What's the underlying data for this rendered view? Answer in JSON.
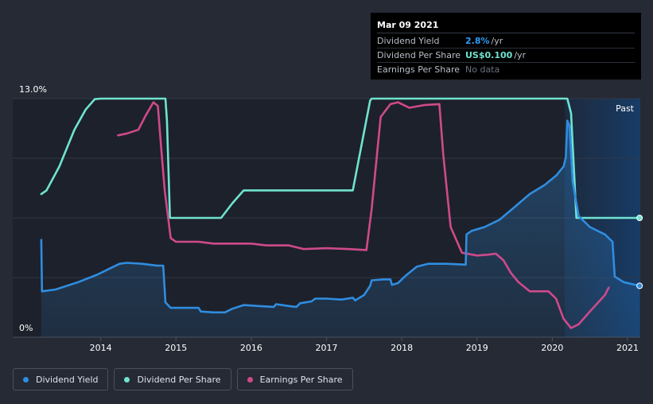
{
  "chart_data": {
    "type": "line",
    "x_tick_labels": [
      "2014",
      "2015",
      "2016",
      "2017",
      "2018",
      "2019",
      "2020",
      "2021"
    ],
    "y_tick_labels": [
      "13.0%",
      "0%"
    ],
    "ylim": [
      0,
      13.0
    ],
    "past_label": "Past",
    "grid": true,
    "series": [
      {
        "name": "Dividend Yield",
        "color": "#2f8de0",
        "area": true,
        "points": [
          [
            2013.21,
            5.3
          ],
          [
            2013.22,
            2.5
          ],
          [
            2013.4,
            2.6
          ],
          [
            2013.7,
            3.0
          ],
          [
            2013.95,
            3.4
          ],
          [
            2014.1,
            3.7
          ],
          [
            2014.25,
            4.0
          ],
          [
            2014.35,
            4.05
          ],
          [
            2014.55,
            4.0
          ],
          [
            2014.75,
            3.9
          ],
          [
            2014.83,
            3.9
          ],
          [
            2014.86,
            1.9
          ],
          [
            2014.93,
            1.6
          ],
          [
            2015.3,
            1.6
          ],
          [
            2015.33,
            1.4
          ],
          [
            2015.5,
            1.35
          ],
          [
            2015.65,
            1.35
          ],
          [
            2015.75,
            1.55
          ],
          [
            2015.9,
            1.75
          ],
          [
            2016.1,
            1.7
          ],
          [
            2016.3,
            1.65
          ],
          [
            2016.33,
            1.8
          ],
          [
            2016.5,
            1.7
          ],
          [
            2016.6,
            1.65
          ],
          [
            2016.65,
            1.85
          ],
          [
            2016.8,
            1.95
          ],
          [
            2016.85,
            2.1
          ],
          [
            2017.0,
            2.1
          ],
          [
            2017.2,
            2.05
          ],
          [
            2017.35,
            2.15
          ],
          [
            2017.38,
            2.0
          ],
          [
            2017.5,
            2.3
          ],
          [
            2017.58,
            2.8
          ],
          [
            2017.6,
            3.1
          ],
          [
            2017.75,
            3.15
          ],
          [
            2017.85,
            3.15
          ],
          [
            2017.87,
            2.85
          ],
          [
            2017.95,
            2.95
          ],
          [
            2018.05,
            3.35
          ],
          [
            2018.2,
            3.85
          ],
          [
            2018.35,
            4.0
          ],
          [
            2018.6,
            4.0
          ],
          [
            2018.85,
            3.95
          ],
          [
            2018.86,
            5.6
          ],
          [
            2018.93,
            5.8
          ],
          [
            2019.1,
            6.0
          ],
          [
            2019.3,
            6.4
          ],
          [
            2019.5,
            7.1
          ],
          [
            2019.7,
            7.8
          ],
          [
            2019.9,
            8.3
          ],
          [
            2020.05,
            8.8
          ],
          [
            2020.15,
            9.3
          ],
          [
            2020.18,
            9.8
          ],
          [
            2020.2,
            11.8
          ],
          [
            2020.23,
            11.5
          ],
          [
            2020.27,
            8.5
          ],
          [
            2020.35,
            6.6
          ],
          [
            2020.5,
            6.0
          ],
          [
            2020.7,
            5.6
          ],
          [
            2020.8,
            5.2
          ],
          [
            2020.83,
            3.3
          ],
          [
            2020.95,
            3.0
          ],
          [
            2021.16,
            2.8
          ]
        ]
      },
      {
        "name": "Dividend Per Share",
        "color": "#6fe3d0",
        "area": false,
        "points": [
          [
            2013.21,
            7.8
          ],
          [
            2013.28,
            8.0
          ],
          [
            2013.45,
            9.3
          ],
          [
            2013.65,
            11.3
          ],
          [
            2013.8,
            12.4
          ],
          [
            2013.92,
            12.97
          ],
          [
            2014.0,
            13.0
          ],
          [
            2014.86,
            13.0
          ],
          [
            2014.88,
            11.8
          ],
          [
            2014.92,
            6.5
          ],
          [
            2015.6,
            6.5
          ],
          [
            2015.75,
            7.3
          ],
          [
            2015.9,
            8.0
          ],
          [
            2016.0,
            8.0
          ],
          [
            2017.35,
            8.0
          ],
          [
            2017.5,
            11.2
          ],
          [
            2017.58,
            12.9
          ],
          [
            2017.6,
            13.0
          ],
          [
            2020.2,
            13.0
          ],
          [
            2020.25,
            12.2
          ],
          [
            2020.32,
            6.5
          ],
          [
            2021.16,
            6.5
          ]
        ]
      },
      {
        "name": "Earnings Per Share",
        "color": "#cf4a8a",
        "area": false,
        "points": [
          [
            2014.23,
            11.0
          ],
          [
            2014.35,
            11.1
          ],
          [
            2014.5,
            11.3
          ],
          [
            2014.6,
            12.1
          ],
          [
            2014.7,
            12.8
          ],
          [
            2014.76,
            12.6
          ],
          [
            2014.8,
            10.5
          ],
          [
            2014.85,
            8.0
          ],
          [
            2014.93,
            5.4
          ],
          [
            2015.0,
            5.2
          ],
          [
            2015.3,
            5.2
          ],
          [
            2015.5,
            5.1
          ],
          [
            2015.7,
            5.1
          ],
          [
            2016.0,
            5.1
          ],
          [
            2016.2,
            5.0
          ],
          [
            2016.5,
            5.0
          ],
          [
            2016.7,
            4.8
          ],
          [
            2017.0,
            4.85
          ],
          [
            2017.3,
            4.8
          ],
          [
            2017.53,
            4.75
          ],
          [
            2017.6,
            7.0
          ],
          [
            2017.72,
            12.0
          ],
          [
            2017.85,
            12.7
          ],
          [
            2017.95,
            12.8
          ],
          [
            2018.1,
            12.5
          ],
          [
            2018.3,
            12.65
          ],
          [
            2018.5,
            12.7
          ],
          [
            2018.55,
            10.0
          ],
          [
            2018.65,
            6.0
          ],
          [
            2018.8,
            4.6
          ],
          [
            2019.0,
            4.45
          ],
          [
            2019.15,
            4.5
          ],
          [
            2019.25,
            4.55
          ],
          [
            2019.35,
            4.2
          ],
          [
            2019.45,
            3.5
          ],
          [
            2019.55,
            3.0
          ],
          [
            2019.7,
            2.5
          ],
          [
            2019.95,
            2.5
          ],
          [
            2020.05,
            2.1
          ],
          [
            2020.15,
            1.0
          ],
          [
            2020.25,
            0.5
          ],
          [
            2020.35,
            0.7
          ],
          [
            2020.5,
            1.4
          ],
          [
            2020.7,
            2.3
          ],
          [
            2020.75,
            2.7
          ]
        ]
      }
    ]
  },
  "tooltip": {
    "date": "Mar 09 2021",
    "rows": [
      {
        "label": "Dividend Yield",
        "value": "2.8%",
        "unit": "/yr",
        "color": "#2f9cf4"
      },
      {
        "label": "Dividend Per Share",
        "value": "US$0.100",
        "unit": "/yr",
        "color": "#6fe3d0"
      },
      {
        "label": "Earnings Per Share",
        "value": "",
        "unit": "No data",
        "color": "#6c7280"
      }
    ]
  },
  "legend": [
    {
      "label": "Dividend Yield",
      "color": "#2f8de0"
    },
    {
      "label": "Dividend Per Share",
      "color": "#6fe3d0"
    },
    {
      "label": "Earnings Per Share",
      "color": "#cf4a8a"
    }
  ]
}
